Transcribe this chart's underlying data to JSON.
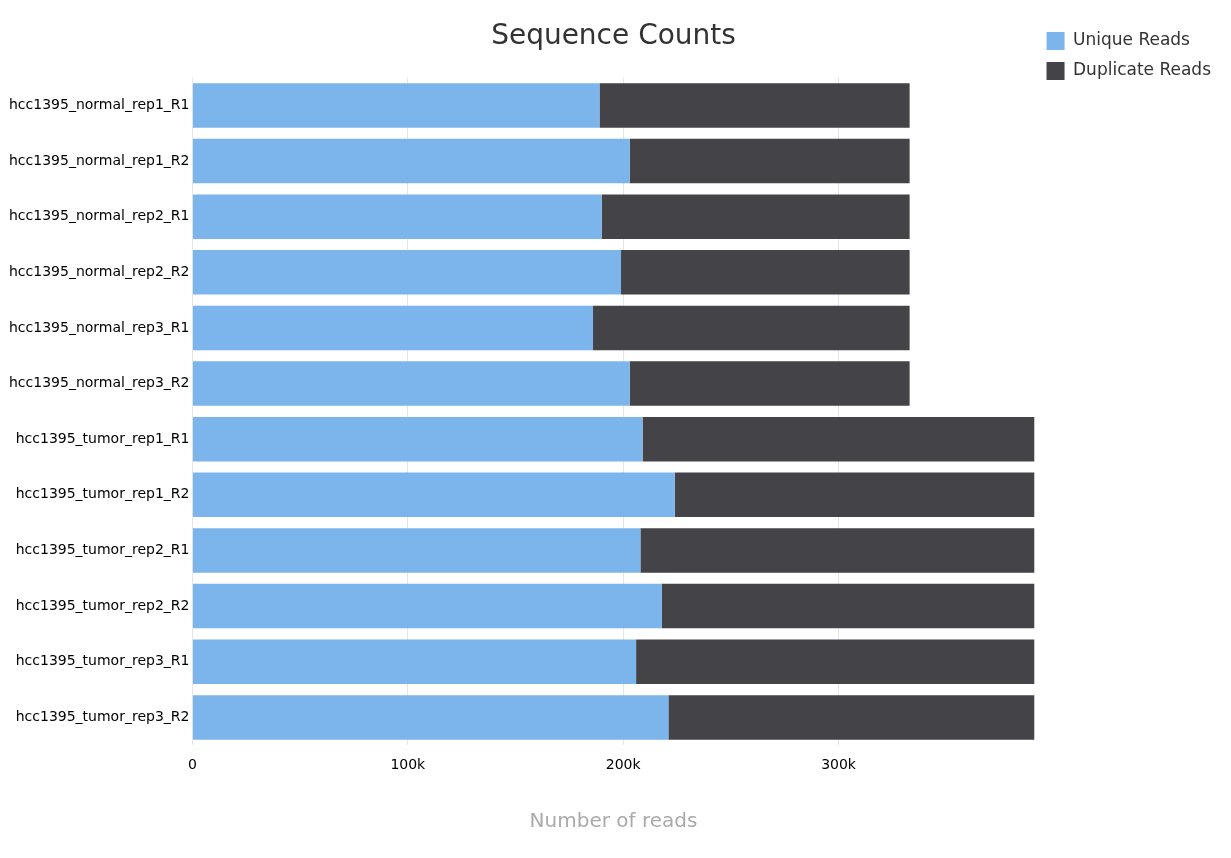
{
  "chart_data": {
    "type": "bar",
    "orientation": "horizontal",
    "stacked": true,
    "title": "Sequence Counts",
    "xlabel": "Number of reads",
    "categories": [
      "hcc1395_normal_rep1_R1",
      "hcc1395_normal_rep1_R2",
      "hcc1395_normal_rep2_R1",
      "hcc1395_normal_rep2_R2",
      "hcc1395_normal_rep3_R1",
      "hcc1395_normal_rep3_R2",
      "hcc1395_tumor_rep1_R1",
      "hcc1395_tumor_rep1_R2",
      "hcc1395_tumor_rep2_R1",
      "hcc1395_tumor_rep2_R2",
      "hcc1395_tumor_rep3_R1",
      "hcc1395_tumor_rep3_R2"
    ],
    "series": [
      {
        "name": "Unique Reads",
        "color": "#7cb5ec",
        "values": [
          189000,
          203000,
          190000,
          199000,
          186000,
          203000,
          209000,
          224000,
          208000,
          218000,
          206000,
          221000
        ]
      },
      {
        "name": "Duplicate Reads",
        "color": "#434348",
        "values": [
          144000,
          130000,
          143000,
          134000,
          147000,
          130000,
          182000,
          167000,
          183000,
          173000,
          185000,
          170000
        ]
      }
    ],
    "xlim": [
      0,
      391000
    ],
    "xticks": [
      0,
      {
        "value": 100000,
        "label": "100k"
      },
      {
        "value": 200000,
        "label": "200k"
      },
      {
        "value": 300000,
        "label": "300k"
      }
    ],
    "grid": "x",
    "legend": "top right"
  }
}
